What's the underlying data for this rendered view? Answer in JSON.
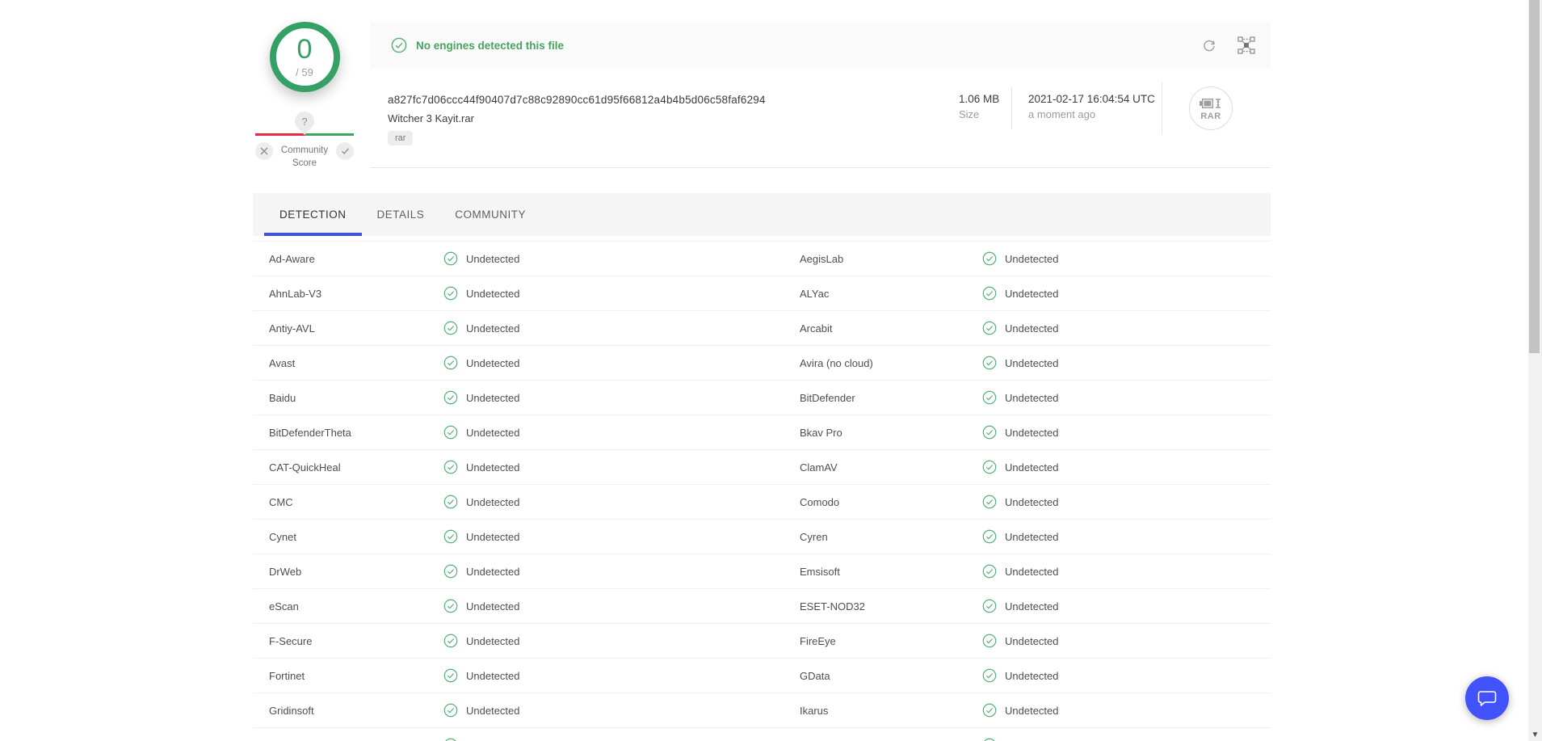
{
  "score_widget": {
    "score": "0",
    "total": "/ 59",
    "tooltip_glyph": "?",
    "community_label_line1": "Community",
    "community_label_line2": "Score"
  },
  "header": {
    "banner_message": "No engines detected this file",
    "file": {
      "hash": "a827fc7d06ccc44f90407d7c88c92890cc61d95f66812a4b4b5d06c58faf6294",
      "name": "Witcher 3 Kayit.rar",
      "tag": "rar"
    },
    "meta": {
      "size_value": "1.06 MB",
      "size_label": "Size",
      "date": "2021-02-17 16:04:54 UTC",
      "date_relative": "a moment ago",
      "file_type_label": "RAR"
    }
  },
  "tabs": [
    {
      "label": "DETECTION",
      "active": true
    },
    {
      "label": "DETAILS",
      "active": false
    },
    {
      "label": "COMMUNITY",
      "active": false
    }
  ],
  "detections": {
    "status_label": "Undetected",
    "rows": [
      {
        "left": "Ad-Aware",
        "right": "AegisLab"
      },
      {
        "left": "AhnLab-V3",
        "right": "ALYac"
      },
      {
        "left": "Antiy-AVL",
        "right": "Arcabit"
      },
      {
        "left": "Avast",
        "right": "Avira (no cloud)"
      },
      {
        "left": "Baidu",
        "right": "BitDefender"
      },
      {
        "left": "BitDefenderTheta",
        "right": "Bkav Pro"
      },
      {
        "left": "CAT-QuickHeal",
        "right": "ClamAV"
      },
      {
        "left": "CMC",
        "right": "Comodo"
      },
      {
        "left": "Cynet",
        "right": "Cyren"
      },
      {
        "left": "DrWeb",
        "right": "Emsisoft"
      },
      {
        "left": "eScan",
        "right": "ESET-NOD32"
      },
      {
        "left": "F-Secure",
        "right": "FireEye"
      },
      {
        "left": "Fortinet",
        "right": "GData"
      },
      {
        "left": "Gridinsoft",
        "right": "Ikarus"
      },
      {
        "left": "",
        "right": "",
        "partial": true
      }
    ]
  },
  "colors": {
    "detection_green": "#35a065",
    "check_green": "#52b176",
    "community_red": "#e8274b",
    "community_green": "#3aa65f",
    "active_tab_blue": "#4353d9",
    "chat_fab_blue": "#4353fb"
  },
  "icons": {
    "banner": "check-circle-icon",
    "toolbar": [
      "reanalyze-icon",
      "vt-graph-icon"
    ],
    "file_type": "rar-archive-icon",
    "chat": "chat-bubble-icon"
  }
}
